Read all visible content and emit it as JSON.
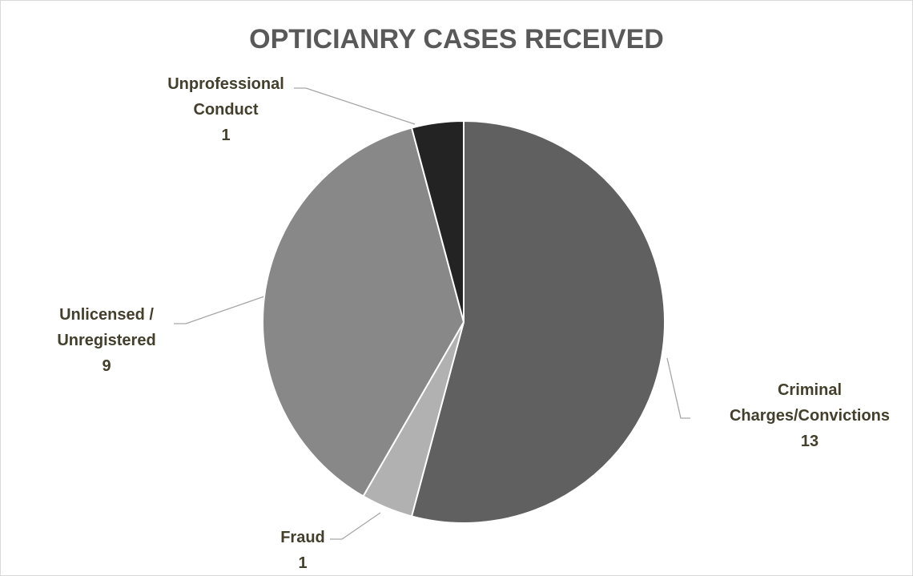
{
  "chart_data": {
    "type": "pie",
    "title": "OPTICIANRY CASES RECEIVED",
    "categories": [
      "Criminal Charges/Convictions",
      "Fraud",
      "Unlicensed / Unregistered",
      "Unprofessional Conduct"
    ],
    "values": [
      13,
      1,
      9,
      1
    ],
    "colors": [
      "#606060",
      "#b1b1b1",
      "#888888",
      "#232323"
    ]
  }
}
